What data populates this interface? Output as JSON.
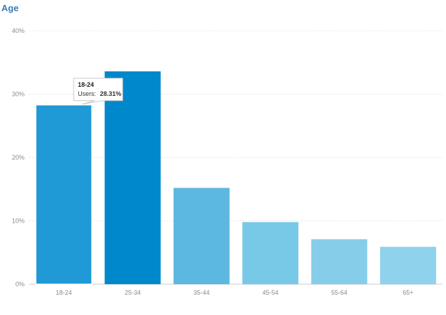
{
  "chart_data": {
    "type": "bar",
    "title": "Age",
    "categories": [
      "18-24",
      "25-34",
      "35-44",
      "45-54",
      "55-64",
      "65+"
    ],
    "values": [
      28.31,
      33.6,
      15.2,
      9.8,
      7.1,
      5.9
    ],
    "value_unit": "%",
    "ylim": [
      0,
      40
    ],
    "yticks": [
      "0%",
      "10%",
      "20%",
      "30%",
      "40%"
    ],
    "bar_colors": [
      "#1f9ad6",
      "#0088cc",
      "#5cb8e0",
      "#78c8e8",
      "#86cdea",
      "#8ed2ec"
    ],
    "highlighted_bar_index": 0,
    "highlighted_bar_outline": "#ffffff",
    "grid": true,
    "tooltip": {
      "category": "18-24",
      "series_label": "Users:",
      "value_label": "28.31%"
    }
  }
}
